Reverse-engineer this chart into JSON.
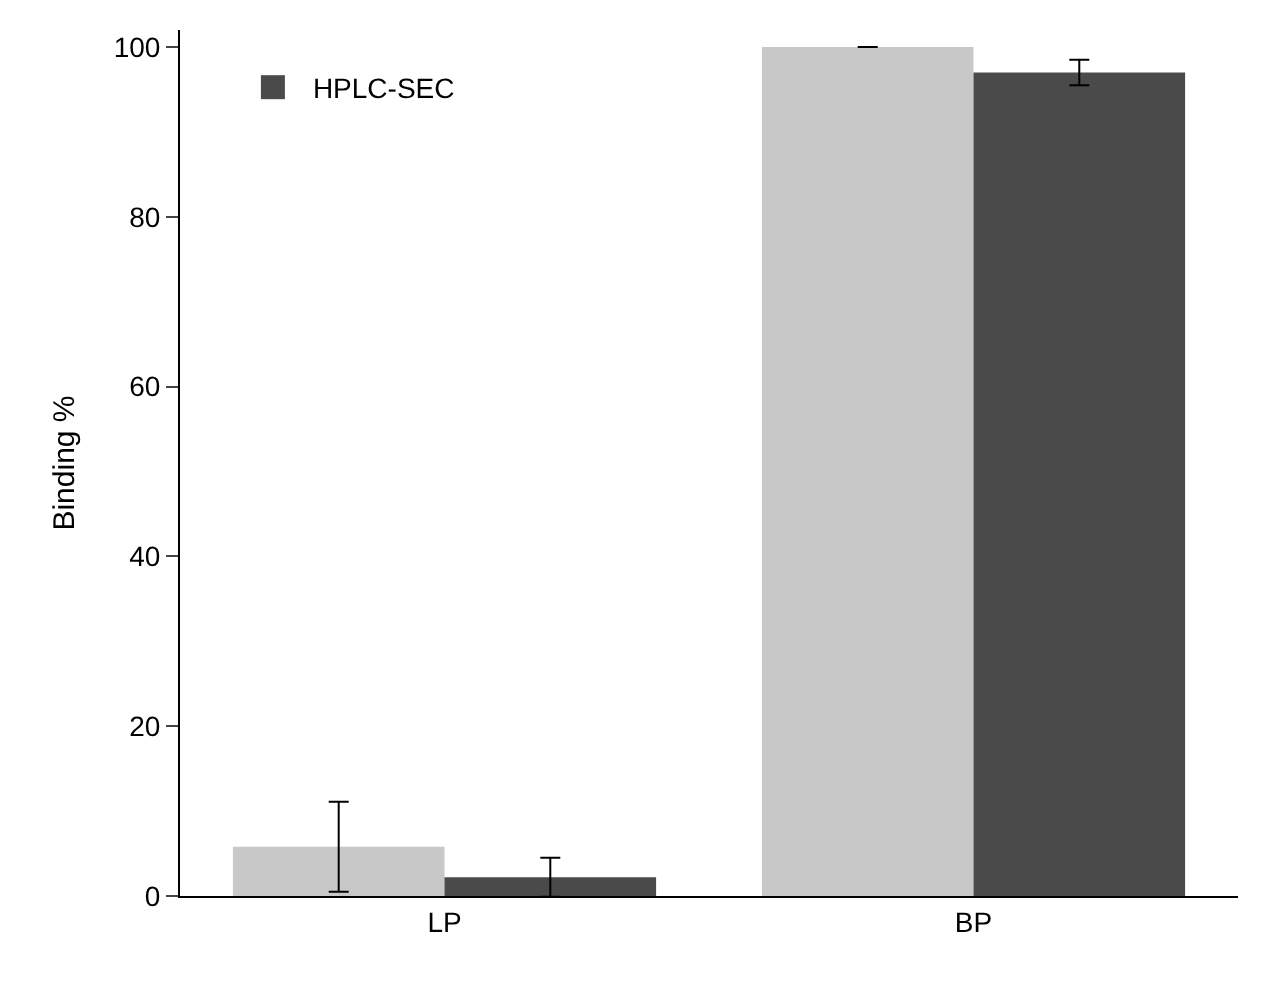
{
  "chart_data": {
    "type": "bar",
    "ylabel": "Binding %",
    "categories": [
      "LP",
      "BP"
    ],
    "series": [
      {
        "color": "#c8c8c8",
        "values": [
          5.8,
          100
        ],
        "errors": [
          5.3,
          null
        ]
      },
      {
        "name": "HPLC-SEC",
        "color": "#4a4a4a",
        "values": [
          2.2,
          97
        ],
        "errors": [
          2.3,
          1.5
        ]
      }
    ],
    "ylim": [
      0,
      102
    ],
    "yticks": [
      0,
      20,
      40,
      60,
      80,
      100
    ],
    "legend": "top left"
  }
}
